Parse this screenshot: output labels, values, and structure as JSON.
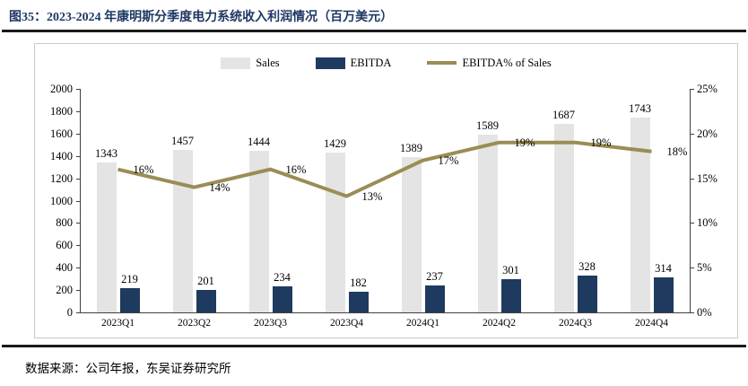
{
  "figure": {
    "title": "图35：2023-2024 年康明斯分季度电力系统收入利润情况（百万美元）",
    "source_note": "数据来源：公司年报，东吴证券研究所"
  },
  "colors": {
    "title": "#1f3864",
    "rule": "#1a1a1a",
    "sales_bar": "#e4e4e4",
    "ebitda_bar": "#1f3a5f",
    "pct_line": "#9a8d55",
    "axis": "#404040",
    "chart_border": "#c9c9c9"
  },
  "chart_data": {
    "type": "bar",
    "subtype": "bars-with-secondary-axis-line",
    "categories": [
      "2023Q1",
      "2023Q2",
      "2023Q3",
      "2023Q4",
      "2024Q1",
      "2024Q2",
      "2024Q3",
      "2024Q4"
    ],
    "series": [
      {
        "name": "Sales",
        "type": "bar",
        "axis": "left",
        "color_key": "sales_bar",
        "values": [
          1343,
          1457,
          1444,
          1429,
          1389,
          1589,
          1687,
          1743
        ]
      },
      {
        "name": "EBITDA",
        "type": "bar",
        "axis": "left",
        "color_key": "ebitda_bar",
        "values": [
          219,
          201,
          234,
          182,
          237,
          301,
          328,
          314
        ]
      },
      {
        "name": "EBITDA% of Sales",
        "type": "line",
        "axis": "right",
        "color_key": "pct_line",
        "values": [
          16,
          14,
          16,
          13,
          17,
          19,
          19,
          18
        ],
        "point_labels": [
          "16%",
          "14%",
          "16%",
          "13%",
          "17%",
          "19%",
          "19%",
          "18%"
        ]
      }
    ],
    "ylabel": "",
    "xlabel": "",
    "ylim": [
      0,
      2000
    ],
    "y2lim": [
      0,
      25
    ],
    "y_ticks": [
      "0",
      "200",
      "400",
      "600",
      "800",
      "1000",
      "1200",
      "1400",
      "1600",
      "1800",
      "2000"
    ],
    "y2_ticks": [
      "0%",
      "5%",
      "10%",
      "15%",
      "20%",
      "25%"
    ],
    "grid": false,
    "legend_position": "top-center",
    "data_labels": true
  }
}
